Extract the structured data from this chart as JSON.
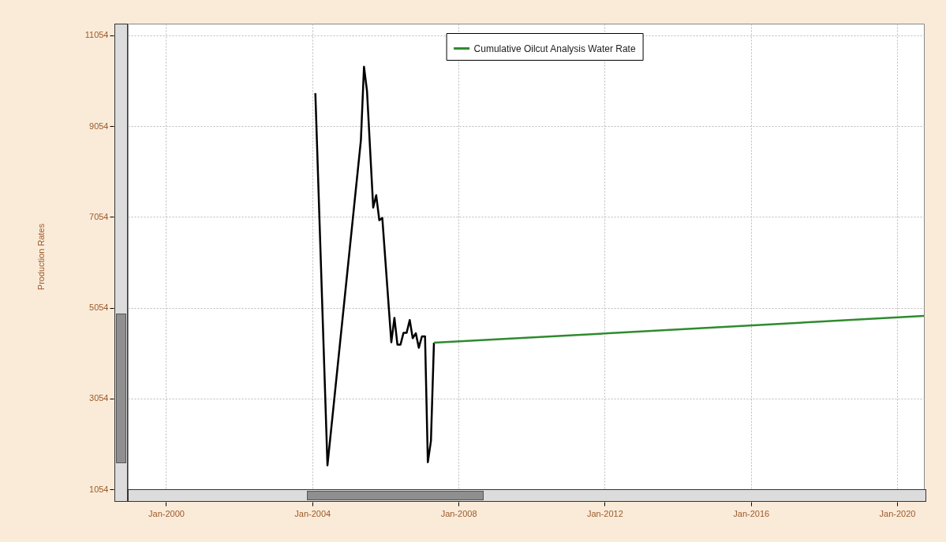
{
  "chart_data": {
    "type": "line",
    "ylabel": "Production Rates",
    "xlim": [
      "1998-12-15",
      "2020-09-25"
    ],
    "ylim": [
      1054,
      11310
    ],
    "xticks": [
      {
        "value": "2000-01-01",
        "label": "Jan-2000"
      },
      {
        "value": "2004-01-01",
        "label": "Jan-2004"
      },
      {
        "value": "2008-01-01",
        "label": "Jan-2008"
      },
      {
        "value": "2012-01-01",
        "label": "Jan-2012"
      },
      {
        "value": "2016-01-01",
        "label": "Jan-2016"
      },
      {
        "value": "2020-01-01",
        "label": "Jan-2020"
      }
    ],
    "yticks": [
      1054,
      3054,
      5054,
      7054,
      9054,
      11054
    ],
    "grid": true,
    "legend": "top",
    "marker": "none",
    "line_style": "solid",
    "series": [
      {
        "color": "#000000",
        "x": [
          "2004-02-01",
          "2004-06-01",
          "2005-05-01",
          "2005-06-01",
          "2005-07-01",
          "2005-09-01",
          "2005-10-01",
          "2005-11-01",
          "2005-12-01",
          "2006-03-01",
          "2006-04-01",
          "2006-05-01",
          "2006-06-01",
          "2006-07-01",
          "2006-08-01",
          "2006-09-01",
          "2006-10-01",
          "2006-11-01",
          "2006-12-01",
          "2007-01-01",
          "2007-02-01",
          "2007-03-01",
          "2007-04-01",
          "2007-05-01"
        ],
        "values": [
          9780,
          1580,
          8740,
          10360,
          9830,
          7260,
          7530,
          6980,
          7030,
          4290,
          4830,
          4240,
          4240,
          4500,
          4500,
          4780,
          4380,
          4490,
          4170,
          4420,
          4420,
          1650,
          2120,
          4280
        ]
      },
      {
        "name": "Cumulative Oilcut Analysis Water Rate",
        "color": "#2e8b2e",
        "x": [
          "2007-05-01",
          "2020-09-25"
        ],
        "values": [
          4280,
          4870
        ]
      }
    ]
  }
}
